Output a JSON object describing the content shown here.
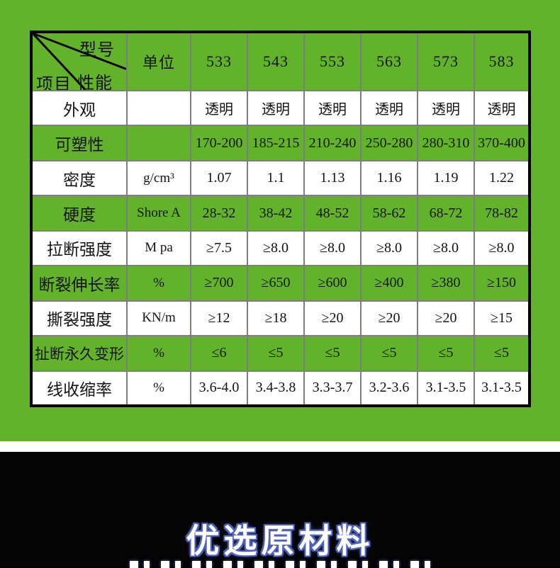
{
  "chart_data": {
    "type": "table",
    "corner": {
      "top_right": "型号",
      "middle": "性能",
      "bottom_left": "项目"
    },
    "unit_header": "单位",
    "models": [
      "533",
      "543",
      "553",
      "563",
      "573",
      "583"
    ],
    "rows": [
      {
        "label": "外观",
        "unit": "",
        "values": [
          "透明",
          "透明",
          "透明",
          "透明",
          "透明",
          "透明"
        ],
        "shade": "white"
      },
      {
        "label": "可塑性",
        "unit": "",
        "values": [
          "170-200",
          "185-215",
          "210-240",
          "250-280",
          "280-310",
          "370-400"
        ],
        "shade": "green"
      },
      {
        "label": "密度",
        "unit": "g/cm³",
        "values": [
          "1.07",
          "1.1",
          "1.13",
          "1.16",
          "1.19",
          "1.22"
        ],
        "shade": "white"
      },
      {
        "label": "硬度",
        "unit": "Shore A",
        "values": [
          "28-32",
          "38-42",
          "48-52",
          "58-62",
          "68-72",
          "78-82"
        ],
        "shade": "green"
      },
      {
        "label": "拉断强度",
        "unit": "M pa",
        "values": [
          "≥7.5",
          "≥8.0",
          "≥8.0",
          "≥8.0",
          "≥8.0",
          "≥8.0"
        ],
        "shade": "white"
      },
      {
        "label": "断裂伸长率",
        "unit": "%",
        "values": [
          "≥700",
          "≥650",
          "≥600",
          "≥400",
          "≥380",
          "≥150"
        ],
        "shade": "green"
      },
      {
        "label": "撕裂强度",
        "unit": "KN/m",
        "values": [
          "≥12",
          "≥18",
          "≥20",
          "≥20",
          "≥20",
          "≥15"
        ],
        "shade": "white"
      },
      {
        "label": "扯断永久变形",
        "unit": "%",
        "values": [
          "≤6",
          "≤5",
          "≤5",
          "≤5",
          "≤5",
          "≤5"
        ],
        "shade": "green"
      },
      {
        "label": "线收缩率",
        "unit": "%",
        "values": [
          "3.6-4.0",
          "3.4-3.8",
          "3.3-3.7",
          "3.2-3.6",
          "3.1-3.5",
          "3.1-3.5"
        ],
        "shade": "white"
      }
    ]
  },
  "banner": {
    "headline": "优选原材料"
  },
  "colors": {
    "background_green": "#63B22C",
    "grid_line": "#7E7E7E",
    "outer_border": "#000000",
    "banner_text": "#FFFFFF",
    "banner_outline": "#5064BE"
  }
}
